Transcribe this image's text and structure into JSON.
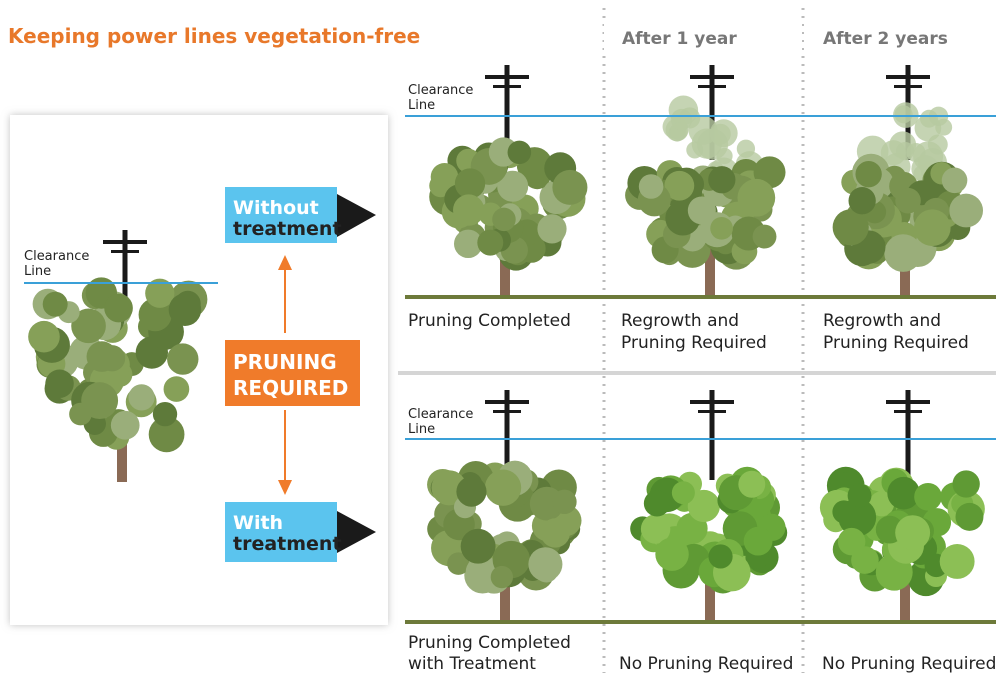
{
  "title": "Keeping power lines vegetation-free",
  "columns": [
    "After 1 year",
    "After 2 years"
  ],
  "left_panel": {
    "clearance_label": [
      "Clearance",
      "Line"
    ],
    "without": [
      "Without",
      "treatment"
    ],
    "pruning": [
      "PRUNING",
      "REQUIRED"
    ],
    "with": [
      "With",
      "treatment"
    ]
  },
  "rows": [
    {
      "clearance_label": [
        "Clearance",
        "Line"
      ],
      "captions": [
        [
          "Pruning Completed"
        ],
        [
          "Regrowth and",
          "Pruning Required"
        ],
        [
          "Regrowth and",
          "Pruning Required"
        ]
      ]
    },
    {
      "clearance_label": [
        "Clearance",
        "Line"
      ],
      "captions": [
        [
          "Pruning Completed",
          "with Treatment"
        ],
        [
          "No Pruning Required"
        ],
        [
          "No Pruning Required"
        ]
      ]
    }
  ]
}
